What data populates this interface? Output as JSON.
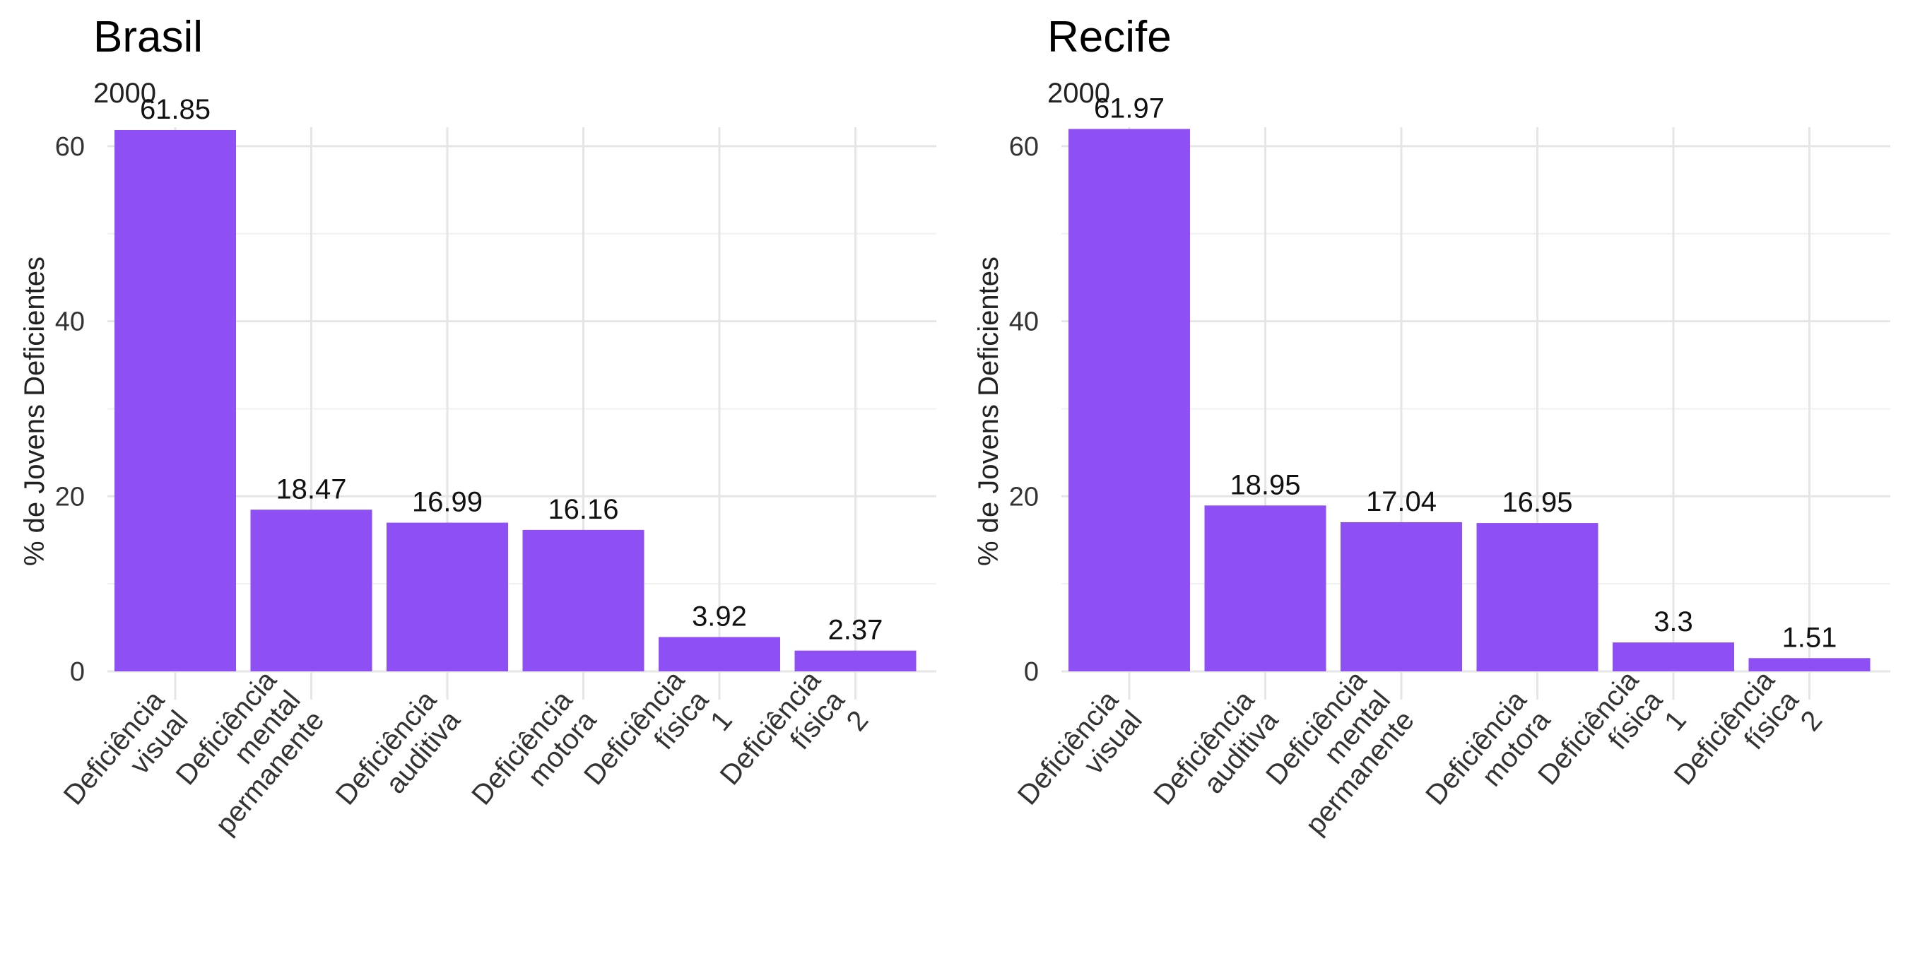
{
  "colors": {
    "bar": "#8e4ff4",
    "grid_major": "#e5e5e5",
    "grid_minor": "#f0f0f0"
  },
  "chart_data": [
    {
      "type": "bar",
      "title": "Brasil",
      "subtitle": "2000",
      "xlabel": "",
      "ylabel": "% de Jovens Deficientes",
      "ylim": [
        0,
        65
      ],
      "yticks": [
        0,
        20,
        40,
        60
      ],
      "grid": true,
      "categories": [
        [
          "Deficiência",
          "visual"
        ],
        [
          "Deficiência",
          "mental",
          "permanente"
        ],
        [
          "Deficiência",
          "auditiva"
        ],
        [
          "Deficiência",
          "motora"
        ],
        [
          "Deficiência",
          "física",
          "1"
        ],
        [
          "Deficiência",
          "física",
          "2"
        ]
      ],
      "values": [
        61.85,
        18.47,
        16.99,
        16.16,
        3.92,
        2.37
      ],
      "value_labels": [
        "61.85",
        "18.47",
        "16.99",
        "16.16",
        "3.92",
        "2.37"
      ]
    },
    {
      "type": "bar",
      "title": "Recife",
      "subtitle": "2000",
      "xlabel": "",
      "ylabel": "% de Jovens Deficientes",
      "ylim": [
        0,
        65
      ],
      "yticks": [
        0,
        20,
        40,
        60
      ],
      "grid": true,
      "categories": [
        [
          "Deficiência",
          "visual"
        ],
        [
          "Deficiência",
          "auditiva"
        ],
        [
          "Deficiência",
          "mental",
          "permanente"
        ],
        [
          "Deficiência",
          "motora"
        ],
        [
          "Deficiência",
          "física",
          "1"
        ],
        [
          "Deficiência",
          "física",
          "2"
        ]
      ],
      "values": [
        61.97,
        18.95,
        17.04,
        16.95,
        3.3,
        1.51
      ],
      "value_labels": [
        "61.97",
        "18.95",
        "17.04",
        "16.95",
        "3.3",
        "1.51"
      ]
    }
  ]
}
